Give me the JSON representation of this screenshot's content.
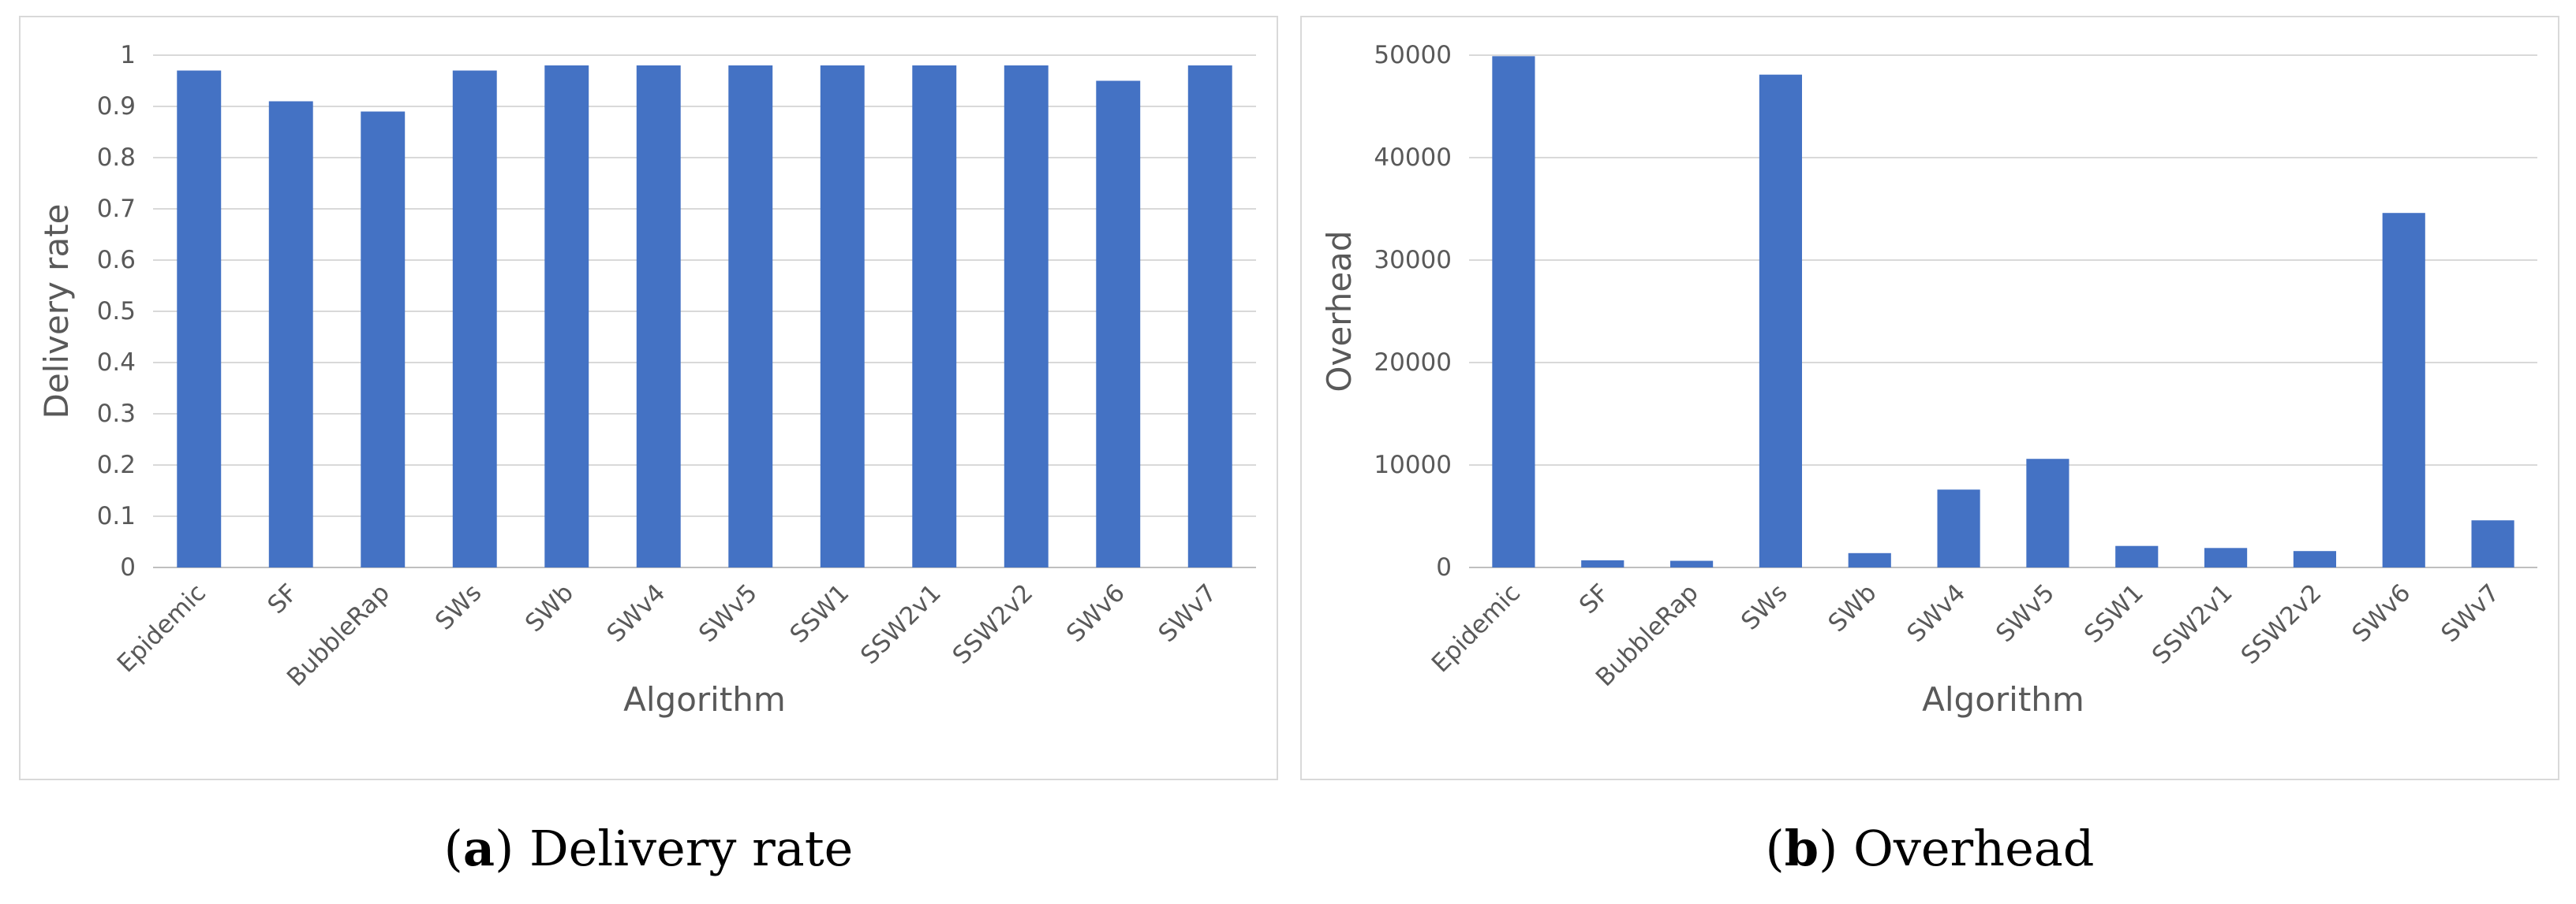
{
  "chart_data": [
    {
      "type": "bar",
      "panel_label": "a",
      "caption": "Delivery rate",
      "xlabel": "Algorithm",
      "ylabel": "Delivery rate",
      "categories": [
        "Epidemic",
        "SF",
        "BubbleRap",
        "SWs",
        "SWb",
        "SWv4",
        "SWv5",
        "SSW1",
        "SSW2v1",
        "SSW2v2",
        "SWv6",
        "SWv7"
      ],
      "values": [
        0.97,
        0.91,
        0.89,
        0.97,
        0.98,
        0.98,
        0.98,
        0.98,
        0.98,
        0.98,
        0.95,
        0.98
      ],
      "ylim": [
        0,
        1
      ],
      "yticks": [
        "0",
        "0.1",
        "0.2",
        "0.3",
        "0.4",
        "0.5",
        "0.6",
        "0.7",
        "0.8",
        "0.9",
        "1"
      ],
      "ytick_values": [
        0,
        0.1,
        0.2,
        0.3,
        0.4,
        0.5,
        0.6,
        0.7,
        0.8,
        0.9,
        1
      ],
      "grid": true,
      "bar_color": "#4472c4",
      "grid_color": "#d9d9d9"
    },
    {
      "type": "bar",
      "panel_label": "b",
      "caption": "Overhead",
      "xlabel": "Algorithm",
      "ylabel": "Overhead",
      "categories": [
        "Epidemic",
        "SF",
        "BubbleRap",
        "SWs",
        "SWb",
        "SWv4",
        "SWv5",
        "SSW1",
        "SSW2v1",
        "SSW2v2",
        "SWv6",
        "SWv7"
      ],
      "values": [
        49900,
        700,
        650,
        48100,
        1400,
        7600,
        10600,
        2100,
        1900,
        1600,
        34600,
        4600
      ],
      "ylim": [
        0,
        50000
      ],
      "yticks": [
        "0",
        "10000",
        "20000",
        "30000",
        "40000",
        "50000"
      ],
      "ytick_values": [
        0,
        10000,
        20000,
        30000,
        40000,
        50000
      ],
      "grid": true,
      "bar_color": "#4472c4",
      "grid_color": "#d9d9d9"
    }
  ]
}
